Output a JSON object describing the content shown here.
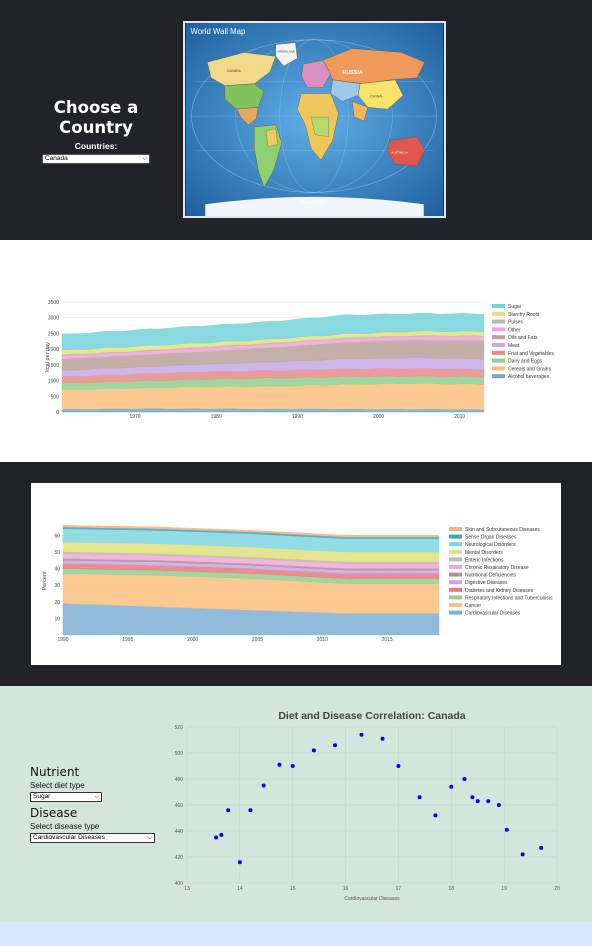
{
  "selector": {
    "title": "Choose a Country",
    "countries_label": "Countries:",
    "selected_country": "Canada"
  },
  "map": {
    "title": "World Wall Map",
    "footer": "Antarctica",
    "labels": [
      "RUSSIA",
      "CANADA",
      "CHINA",
      "AUSTRALIA",
      "GREENLAND"
    ],
    "colors": {
      "ocean": "#2f80c8",
      "russia": "#ef9a5a",
      "canada": "#f1d98a",
      "usa": "#7fc35a"
    }
  },
  "diet_chart": {
    "ylabel": "kcal per day",
    "yticks": [
      "0",
      "500",
      "1000",
      "1500",
      "2000",
      "2500",
      "3000",
      "3500"
    ],
    "xticks": [
      "1970",
      "1980",
      "1990",
      "2000",
      "2010"
    ],
    "legend": [
      "Sugar",
      "Starchy Roots",
      "Pulses",
      "Other",
      "Oils and Fats",
      "Meat",
      "Fruit and Vegetables",
      "Dairy and Eggs",
      "Cereals and Grains",
      "Alcohol beverages"
    ],
    "colors": [
      "#73d3d9",
      "#e5e07c",
      "#b8b8b8",
      "#f0a3dc",
      "#b8a29a",
      "#c6a9e6",
      "#e88b86",
      "#8fcf8f",
      "#fbbf80",
      "#6fa7d0"
    ]
  },
  "disease_chart": {
    "ylabel": "Percent",
    "yticks": [
      "10",
      "20",
      "30",
      "40",
      "50",
      "60"
    ],
    "xticks": [
      "1990",
      "1995",
      "2000",
      "2005",
      "2010",
      "2015"
    ],
    "legend": [
      "Skin and Subcutaneous Diseases",
      "Sense Organ Diseases",
      "Neurological Disorders",
      "Mental Disorders",
      "Enteric Infections",
      "Chronic Respiratory Disease",
      "Nutritional Deficiencies",
      "Digestive Diseases",
      "Diabetes and Kidney Diseases",
      "Respiratory Infections and Tuberculosis",
      "Cancer",
      "Cardiovascular Diseases"
    ],
    "colors": [
      "#fbb07c",
      "#3aa5c9",
      "#7fd6e2",
      "#e1e07c",
      "#b8b8b8",
      "#f4a8d8",
      "#a9938d",
      "#c5a8e8",
      "#e8787a",
      "#8fcf8f",
      "#fbbf80",
      "#7eafd4"
    ]
  },
  "controls": {
    "nutrient_heading": "Nutrient",
    "diet_label": "Select diet type",
    "diet_value": "Sugar",
    "disease_heading": "Disease",
    "disease_label": "Select disease type",
    "disease_value": "Cardiovascular Diseases"
  },
  "chart_data": {
    "type": "scatter",
    "title": "Diet and Disease Correlation: Canada",
    "xlabel": "Cardiovascular Diseases",
    "ylabel": "Sugar",
    "xlim": [
      13,
      20
    ],
    "ylim": [
      400,
      520
    ],
    "xticks": [
      "13",
      "14",
      "15",
      "16",
      "17",
      "18",
      "19",
      "20"
    ],
    "yticks": [
      "400",
      "420",
      "440",
      "460",
      "480",
      "500",
      "520"
    ],
    "points": [
      [
        13.55,
        435
      ],
      [
        13.65,
        437
      ],
      [
        13.78,
        456
      ],
      [
        14.0,
        416
      ],
      [
        14.2,
        456
      ],
      [
        14.45,
        475
      ],
      [
        14.75,
        491
      ],
      [
        15.0,
        490
      ],
      [
        15.4,
        502
      ],
      [
        15.8,
        506
      ],
      [
        16.3,
        514
      ],
      [
        16.7,
        511
      ],
      [
        17.0,
        490
      ],
      [
        17.4,
        466
      ],
      [
        17.7,
        452
      ],
      [
        18.0,
        474
      ],
      [
        18.25,
        480
      ],
      [
        18.4,
        466
      ],
      [
        18.5,
        463
      ],
      [
        18.7,
        463
      ],
      [
        18.9,
        460
      ],
      [
        19.05,
        441
      ],
      [
        19.35,
        422
      ],
      [
        19.7,
        427
      ]
    ],
    "color": "#0000ff"
  }
}
